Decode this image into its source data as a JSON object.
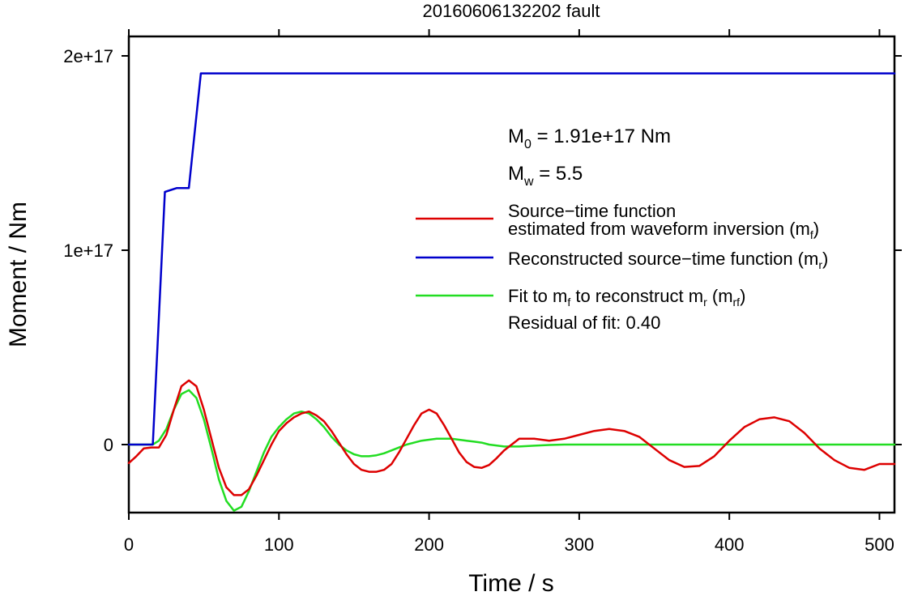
{
  "chart_data": {
    "type": "line",
    "title": "20160606132202 fault",
    "xlabel": "Time / s",
    "ylabel": "Moment / Nm",
    "xlim": [
      0,
      510
    ],
    "ylim": [
      -3.5e+16,
      2.1e+17
    ],
    "x_ticks": [
      0,
      100,
      200,
      300,
      400,
      500
    ],
    "x_tick_labels": [
      "0",
      "100",
      "200",
      "300",
      "400",
      "500"
    ],
    "y_ticks": [
      0,
      1e+17,
      2e+17
    ],
    "y_tick_labels": [
      "0",
      "1e+17",
      "2e+17"
    ],
    "grid": false,
    "legend_position": "right",
    "annotations": {
      "m0_symbol": "M",
      "m0_sub": "0",
      "m0_value": " = 1.91e+17 Nm",
      "mw_symbol": "M",
      "mw_sub": "w",
      "mw_value": " = 5.5",
      "residual": "Residual of fit: 0.40"
    },
    "series": [
      {
        "key": "mf",
        "color": "#dd0000",
        "legend_line1": "Source−time function",
        "legend_line2_pre": "estimated from waveform inversion (m",
        "legend_line2_sub": "f",
        "legend_line2_post": ")",
        "x": [
          0,
          5,
          10,
          15,
          20,
          25,
          30,
          35,
          40,
          45,
          50,
          55,
          60,
          65,
          70,
          75,
          80,
          85,
          90,
          95,
          100,
          105,
          110,
          115,
          120,
          125,
          130,
          135,
          140,
          145,
          150,
          155,
          160,
          165,
          170,
          175,
          180,
          185,
          190,
          195,
          200,
          205,
          210,
          215,
          220,
          225,
          230,
          235,
          240,
          245,
          250,
          255,
          260,
          270,
          280,
          290,
          300,
          310,
          320,
          330,
          340,
          350,
          360,
          370,
          380,
          390,
          400,
          410,
          420,
          430,
          440,
          450,
          460,
          470,
          480,
          490,
          500,
          510
        ],
        "y": [
          -9500000000000000.0,
          -6000000000000000.0,
          -2000000000000000.0,
          -1500000000000000.0,
          -1500000000000000.0,
          5000000000000000.0,
          1.8e+16,
          3e+16,
          3.3e+16,
          3e+16,
          1.8e+16,
          3000000000000000.0,
          -1.2e+16,
          -2.2e+16,
          -2.6e+16,
          -2.6e+16,
          -2.3e+16,
          -1.6e+16,
          -8000000000000000.0,
          0,
          7000000000000000.0,
          1.1e+16,
          1.4e+16,
          1.6e+16,
          1.7e+16,
          1.5e+16,
          1.2e+16,
          7000000000000000.0,
          1000000000000000.0,
          -5000000000000000.0,
          -1e+16,
          -1.3e+16,
          -1.4e+16,
          -1.4e+16,
          -1.3e+16,
          -1e+16,
          -4000000000000000.0,
          3000000000000000.0,
          1e+16,
          1.6e+16,
          1.8e+16,
          1.6e+16,
          1e+16,
          3000000000000000.0,
          -4000000000000000.0,
          -9000000000000000.0,
          -1.15e+16,
          -1.2e+16,
          -1.05e+16,
          -7000000000000000.0,
          -3000000000000000.0,
          0,
          3000000000000000.0,
          3000000000000000.0,
          2000000000000000.0,
          3000000000000000.0,
          5000000000000000.0,
          7000000000000000.0,
          8000000000000000.0,
          7000000000000000.0,
          4000000000000000.0,
          -2000000000000000.0,
          -8000000000000000.0,
          -1.15e+16,
          -1.1e+16,
          -6000000000000000.0,
          2000000000000000.0,
          9000000000000000.0,
          1.3e+16,
          1.4e+16,
          1.2e+16,
          6000000000000000.0,
          -2000000000000000.0,
          -8000000000000000.0,
          -1.2e+16,
          -1.3e+16,
          -1e+16,
          -1e+16
        ]
      },
      {
        "key": "mr",
        "color": "#0000cc",
        "legend_pre": "Reconstructed source−time function (m",
        "legend_sub": "r",
        "legend_post": ")",
        "x": [
          0,
          16,
          24,
          32,
          40,
          48,
          510
        ],
        "y": [
          0,
          0,
          1.3e+17,
          1.32e+17,
          1.32e+17,
          1.91e+17,
          1.91e+17
        ]
      },
      {
        "key": "mrf",
        "color": "#22dd22",
        "legend_pre": "Fit to m",
        "legend_sub1": "f",
        "legend_mid": " to reconstruct m",
        "legend_sub2": "r",
        "legend_mid2": " (m",
        "legend_sub3": "rf",
        "legend_post": ")",
        "x": [
          0,
          16,
          20,
          25,
          30,
          35,
          40,
          45,
          50,
          55,
          60,
          65,
          70,
          75,
          80,
          85,
          90,
          95,
          100,
          105,
          110,
          115,
          120,
          125,
          130,
          135,
          140,
          145,
          150,
          155,
          160,
          165,
          170,
          175,
          180,
          185,
          190,
          195,
          200,
          205,
          210,
          215,
          220,
          225,
          230,
          235,
          240,
          250,
          260,
          270,
          280,
          290,
          300,
          320,
          340,
          360,
          380,
          400,
          420,
          440,
          460,
          480,
          500,
          510
        ],
        "y": [
          0,
          0,
          2000000000000000.0,
          8000000000000000.0,
          1.8e+16,
          2.6e+16,
          2.8e+16,
          2.4e+16,
          1.3e+16,
          -2000000000000000.0,
          -1.8e+16,
          -2.9e+16,
          -3.4e+16,
          -3.2e+16,
          -2.4e+16,
          -1.4e+16,
          -4000000000000000.0,
          4000000000000000.0,
          9000000000000000.0,
          1.3e+16,
          1.6e+16,
          1.7e+16,
          1.6e+16,
          1.3e+16,
          9000000000000000.0,
          4000000000000000.0,
          0,
          -3000000000000000.0,
          -5000000000000000.0,
          -6000000000000000.0,
          -6000000000000000.0,
          -5500000000000000.0,
          -4500000000000000.0,
          -3000000000000000.0,
          -1500000000000000.0,
          0,
          1000000000000000.0,
          2000000000000000.0,
          2500000000000000.0,
          3000000000000000.0,
          3000000000000000.0,
          3000000000000000.0,
          2500000000000000.0,
          2000000000000000.0,
          1500000000000000.0,
          1000000000000000.0,
          0,
          -1000000000000000.0,
          -1000000000000000.0,
          -600000000000000.0,
          -200000000000000.0,
          0,
          0,
          0,
          0,
          0,
          0,
          0,
          0,
          0,
          0,
          0,
          0,
          0
        ]
      }
    ]
  }
}
